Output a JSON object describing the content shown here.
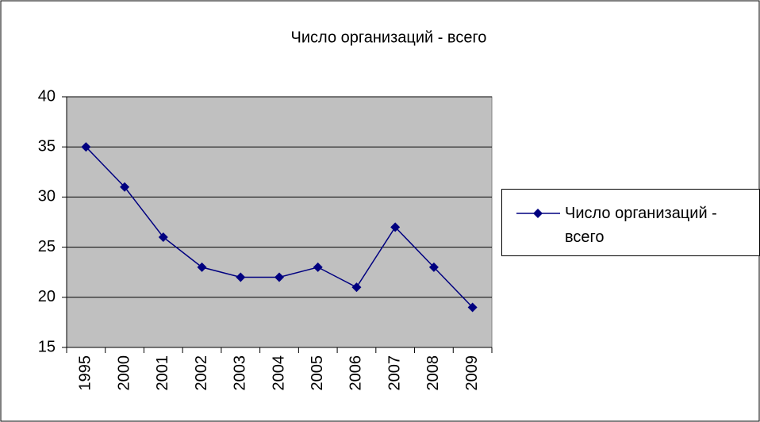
{
  "chart_data": {
    "type": "line",
    "title": "Число организаций - всего",
    "categories": [
      "1995",
      "2000",
      "2001",
      "2002",
      "2003",
      "2004",
      "2005",
      "2006",
      "2007",
      "2008",
      "2009"
    ],
    "series": [
      {
        "name": "Число организаций - всего",
        "color": "#000080",
        "values": [
          35,
          31,
          26,
          23,
          22,
          22,
          23,
          21,
          27,
          23,
          19
        ]
      }
    ],
    "ylim": [
      15,
      40
    ],
    "yticks": [
      15,
      20,
      25,
      30,
      35,
      40
    ],
    "grid": true,
    "legend": "right"
  }
}
